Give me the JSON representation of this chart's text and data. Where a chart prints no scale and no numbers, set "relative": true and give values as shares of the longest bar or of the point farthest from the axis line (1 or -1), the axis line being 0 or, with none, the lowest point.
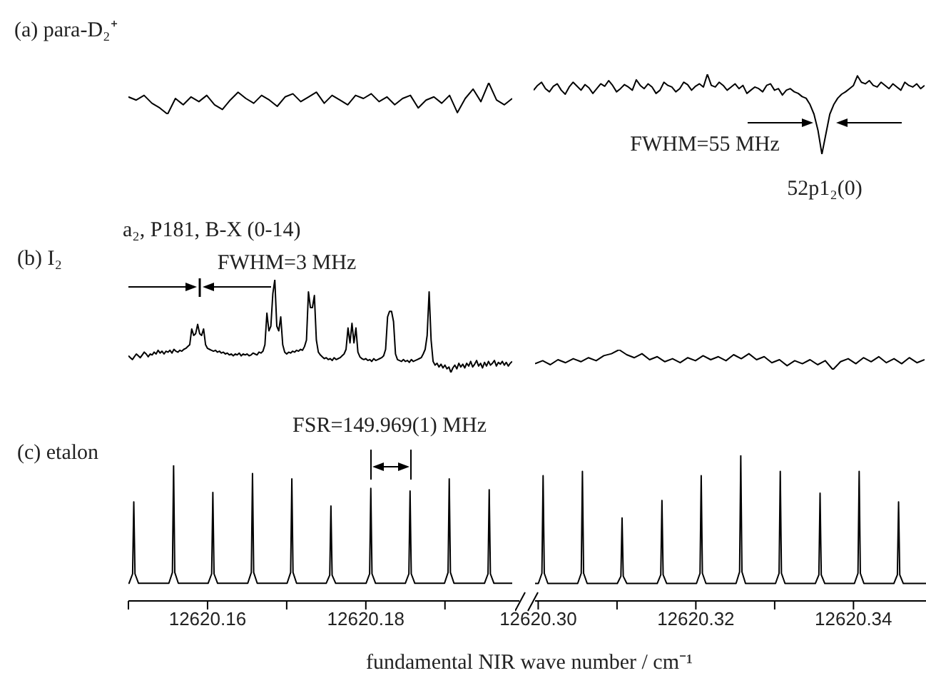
{
  "chart_data": [
    {
      "type": "line",
      "title": "(a) para-D₂⁺",
      "relative": true,
      "tick_labels": false,
      "categories": [
        null,
        null,
        null,
        null,
        null,
        null,
        null,
        null,
        null,
        null,
        null,
        null,
        null,
        null,
        null,
        null,
        null,
        null,
        null,
        null,
        null,
        null,
        null,
        null,
        null,
        null,
        null,
        null,
        null,
        null,
        null,
        null,
        null,
        null,
        null,
        null,
        null,
        null,
        null,
        null,
        null,
        null,
        null,
        null,
        null,
        null,
        null,
        null,
        null,
        null
      ],
      "series": [
        {
          "color": "#000000",
          "values": [
            0.55,
            0.45,
            0.6,
            0.35,
            0.2,
            0,
            0.5,
            0.3,
            0.55,
            0.4,
            0.6,
            0.3,
            0.15,
            0.45,
            0.7,
            0.5,
            0.35,
            0.6,
            0.45,
            0.25,
            0.55,
            0.65,
            0.4,
            0.55,
            0.7,
            0.35,
            0.6,
            0.45,
            0.3,
            0.6,
            0.5,
            0.65,
            0.4,
            0.55,
            0.3,
            0.5,
            0.6,
            0.2,
            0.45,
            0.55,
            0.35,
            0.6,
            0.05,
            0.5,
            0.8,
            0.4,
            1,
            0.45,
            0.3,
            0.5
          ]
        }
      ]
    },
    {
      "type": "line",
      "relative": true,
      "tick_labels": false,
      "annotations": [
        "FWHM=55 MHz",
        "52p1₂(0)"
      ],
      "categories": [
        null,
        null,
        null,
        null,
        null,
        null,
        null,
        null,
        null,
        null,
        null,
        null,
        null,
        null,
        null,
        null,
        null,
        null,
        null,
        null,
        null,
        null,
        null,
        null,
        null,
        null,
        null,
        null,
        null,
        null,
        null,
        null,
        null,
        null,
        null,
        null,
        null,
        null,
        null,
        null,
        null,
        null,
        null,
        null,
        null,
        null,
        null,
        null,
        null,
        null,
        null,
        null,
        null,
        null,
        null,
        null,
        null,
        null,
        null,
        null,
        null,
        null,
        null,
        null,
        null,
        null,
        null,
        null,
        null,
        null,
        null,
        null,
        null,
        null,
        null,
        null,
        null,
        null,
        null,
        null,
        null,
        null,
        null,
        null,
        null,
        null,
        null,
        null,
        null,
        null,
        null,
        null,
        null,
        null,
        null,
        null,
        null,
        null,
        null,
        null
      ],
      "series": [
        {
          "color": "#000000",
          "values": [
            0.8,
            0.86,
            0.9,
            0.82,
            0.78,
            0.85,
            0.88,
            0.8,
            0.75,
            0.84,
            0.9,
            0.85,
            0.8,
            0.87,
            0.83,
            0.76,
            0.82,
            0.88,
            0.85,
            0.92,
            0.86,
            0.78,
            0.82,
            0.87,
            0.84,
            0.8,
            0.93,
            0.86,
            0.82,
            0.88,
            0.84,
            0.76,
            0.8,
            0.9,
            0.86,
            0.84,
            0.78,
            0.82,
            0.9,
            0.87,
            0.8,
            0.85,
            0.88,
            0.84,
            1,
            0.86,
            0.84,
            0.9,
            0.86,
            0.8,
            0.84,
            0.88,
            0.82,
            0.86,
            0.76,
            0.8,
            0.84,
            0.82,
            0.78,
            0.86,
            0.88,
            0.8,
            0.82,
            0.74,
            0.8,
            0.82,
            0.78,
            0.76,
            0.72,
            0.7,
            0.62,
            0.5,
            0.3,
            0,
            0.25,
            0.5,
            0.62,
            0.7,
            0.75,
            0.78,
            0.82,
            0.86,
            0.98,
            0.9,
            0.88,
            0.92,
            0.86,
            0.84,
            0.9,
            0.86,
            0.82,
            0.88,
            0.84,
            0.8,
            0.9,
            0.86,
            0.84,
            0.88,
            0.82,
            0.86
          ]
        }
      ]
    },
    {
      "type": "line",
      "title": "(b) I₂",
      "relative": true,
      "tick_labels": false,
      "annotations": [
        "a₂, P181, B-X (0-14)",
        "FWHM=3 MHz"
      ],
      "categories": [
        null,
        null,
        null,
        null,
        null,
        null,
        null,
        null,
        null,
        null,
        null,
        null,
        null,
        null,
        null,
        null,
        null,
        null,
        null,
        null,
        null,
        null,
        null,
        null,
        null,
        null,
        null,
        null,
        null,
        null,
        null,
        null,
        null,
        null,
        null,
        null,
        null,
        null,
        null,
        null,
        null,
        null,
        null,
        null,
        null,
        null,
        null,
        null,
        null,
        null,
        null,
        null,
        null,
        null,
        null,
        null,
        null,
        null,
        null,
        null,
        null,
        null,
        null,
        null,
        null,
        null,
        null,
        null,
        null,
        null,
        null,
        null,
        null,
        null,
        null,
        null,
        null,
        null,
        null,
        null,
        null,
        null,
        null,
        null,
        null,
        null,
        null,
        null,
        null,
        null,
        null,
        null,
        null,
        null,
        null,
        null,
        null,
        null,
        null,
        null,
        null,
        null,
        null,
        null,
        null,
        null,
        null,
        null,
        null,
        null,
        null,
        null,
        null,
        null,
        null,
        null,
        null,
        null,
        null,
        null,
        null,
        null,
        null,
        null,
        null,
        null,
        null,
        null,
        null,
        null,
        null,
        null,
        null,
        null,
        null,
        null,
        null,
        null,
        null,
        null,
        null,
        null,
        null,
        null,
        null,
        null,
        null,
        null,
        null,
        null,
        null,
        null,
        null,
        null,
        null,
        null,
        null,
        null,
        null,
        null,
        null,
        null,
        null,
        null,
        null,
        null,
        null,
        null,
        null,
        null,
        null,
        null,
        null,
        null,
        null,
        null,
        null,
        null,
        null,
        null,
        null,
        null,
        null,
        null,
        null,
        null,
        null,
        null,
        null,
        null,
        null,
        null,
        null,
        null,
        null
      ],
      "series": [
        {
          "color": "#000000",
          "values": [
            0.18,
            0.16,
            0.14,
            0.17,
            0.2,
            0.18,
            0.16,
            0.19,
            0.22,
            0.2,
            0.17,
            0.2,
            0.19,
            0.22,
            0.2,
            0.24,
            0.21,
            0.23,
            0.2,
            0.23,
            0.22,
            0.24,
            0.21,
            0.25,
            0.23,
            0.22,
            0.24,
            0.23,
            0.25,
            0.26,
            0.28,
            0.3,
            0.47,
            0.4,
            0.42,
            0.52,
            0.42,
            0.4,
            0.47,
            0.3,
            0.26,
            0.25,
            0.24,
            0.23,
            0.24,
            0.22,
            0.23,
            0.21,
            0.22,
            0.2,
            0.21,
            0.19,
            0.2,
            0.18,
            0.2,
            0.19,
            0.21,
            0.18,
            0.2,
            0.19,
            0.2,
            0.18,
            0.19,
            0.21,
            0.2,
            0.19,
            0.22,
            0.21,
            0.23,
            0.3,
            0.64,
            0.45,
            0.5,
            0.85,
            1,
            0.5,
            0.45,
            0.6,
            0.3,
            0.22,
            0.2,
            0.22,
            0.21,
            0.23,
            0.22,
            0.24,
            0.23,
            0.25,
            0.24,
            0.28,
            0.35,
            0.87,
            0.7,
            0.7,
            0.83,
            0.35,
            0.22,
            0.19,
            0.17,
            0.15,
            0.16,
            0.14,
            0.15,
            0.13,
            0.16,
            0.14,
            0.15,
            0.16,
            0.18,
            0.2,
            0.25,
            0.48,
            0.32,
            0.53,
            0.32,
            0.48,
            0.22,
            0.17,
            0.15,
            0.14,
            0.15,
            0.13,
            0.14,
            0.12,
            0.15,
            0.13,
            0.14,
            0.15,
            0.16,
            0.18,
            0.25,
            0.6,
            0.66,
            0.66,
            0.55,
            0.2,
            0.14,
            0.13,
            0.12,
            0.14,
            0.12,
            0.13,
            0.11,
            0.14,
            0.12,
            0.13,
            0.14,
            0.15,
            0.16,
            0.2,
            0.25,
            0.4,
            0.87,
            0.35,
            0.12,
            0.08,
            0.1,
            0.06,
            0.09,
            0.05,
            0.08,
            0.04,
            0.06,
            0,
            0.05,
            0.08,
            0.04,
            0.1,
            0.06,
            0.09,
            0.05,
            0.1,
            0.07,
            0.12,
            0.06,
            0.09,
            0.13,
            0.07,
            0.1,
            0.05,
            0.11,
            0.07,
            0.12,
            0.08,
            0.1,
            0.13,
            0.07,
            0.11,
            0.09,
            0.12,
            0.08,
            0.11,
            0.07,
            0.1,
            0.12
          ]
        }
      ]
    },
    {
      "type": "line",
      "relative": true,
      "tick_labels": false,
      "categories": [
        null,
        null,
        null,
        null,
        null,
        null,
        null,
        null,
        null,
        null,
        null,
        null,
        null,
        null,
        null,
        null,
        null,
        null,
        null,
        null,
        null,
        null,
        null,
        null,
        null,
        null,
        null,
        null,
        null,
        null,
        null,
        null,
        null,
        null,
        null,
        null,
        null,
        null,
        null,
        null,
        null,
        null,
        null,
        null,
        null,
        null,
        null,
        null,
        null,
        null,
        null,
        null
      ],
      "series": [
        {
          "color": "#000000",
          "values": [
            0.3,
            0.45,
            0.25,
            0.5,
            0.35,
            0.55,
            0.4,
            0.6,
            0.45,
            0.7,
            0.8,
            1,
            0.75,
            0.6,
            0.8,
            0.5,
            0.65,
            0.4,
            0.55,
            0.35,
            0.6,
            0.45,
            0.7,
            0.5,
            0.65,
            0.45,
            0.75,
            0.55,
            0.8,
            0.5,
            0.65,
            0.35,
            0.5,
            0.2,
            0.45,
            0.3,
            0.5,
            0.25,
            0.45,
            0,
            0.4,
            0.55,
            0.3,
            0.6,
            0.4,
            0.65,
            0.35,
            0.55,
            0.3,
            0.6,
            0.35,
            0.5
          ]
        }
      ]
    },
    {
      "type": "line",
      "title": "(c) etalon",
      "xlabel": "fundamental NIR wave number / cm⁻¹",
      "relative": true,
      "tick_labels": "x",
      "xlim": [
        12620.15,
        12620.1994
      ],
      "xticks": [
        {
          "value": 12620.15,
          "label": null
        },
        12620.16,
        {
          "value": 12620.17,
          "label": null
        },
        12620.18,
        {
          "value": 12620.19,
          "label": null
        }
      ],
      "annotations": [
        "FSR=149.969(1) MHz"
      ],
      "x": [
        12620.15,
        12620.15008,
        12620.15053,
        12620.15068,
        12620.15083,
        12620.15128,
        12620.15511,
        12620.15556,
        12620.15571,
        12620.15586,
        12620.15631,
        12620.16007,
        12620.16052,
        12620.16067,
        12620.16082,
        12620.16127,
        12620.16508,
        12620.16553,
        12620.16568,
        12620.16583,
        12620.16628,
        12620.17005,
        12620.1705,
        12620.17065,
        12620.1708,
        12620.17125,
        12620.17499,
        12620.17544,
        12620.17559,
        12620.17574,
        12620.17619,
        12620.18003,
        12620.18048,
        12620.18063,
        12620.18078,
        12620.18123,
        12620.18499,
        12620.18544,
        12620.18559,
        12620.18574,
        12620.18619,
        12620.18994,
        12620.19039,
        12620.19054,
        12620.19069,
        12620.19114,
        12620.19499,
        12620.19544,
        12620.19559,
        12620.19574,
        12620.19619,
        12620.1985
      ],
      "series": [
        {
          "color": "#000000",
          "values": [
            0.13,
            0.13,
            0.2,
            0.73,
            0.2,
            0.13,
            0.13,
            0.21,
            1,
            0.21,
            0.13,
            0.13,
            0.2,
            0.8,
            0.2,
            0.13,
            0.13,
            0.21,
            0.94,
            0.21,
            0.13,
            0.13,
            0.21,
            0.9,
            0.21,
            0.13,
            0.13,
            0.19,
            0.7,
            0.19,
            0.13,
            0.13,
            0.2,
            0.83,
            0.2,
            0.13,
            0.13,
            0.2,
            0.81,
            0.2,
            0.13,
            0.13,
            0.21,
            0.9,
            0.21,
            0.13,
            0.13,
            0.2,
            0.82,
            0.2,
            0.13,
            0.13
          ]
        }
      ]
    },
    {
      "type": "line",
      "relative": true,
      "tick_labels": "x",
      "xlim": [
        12620.2996,
        12620.3492
      ],
      "xticks": [
        {
          "value": 12620.3,
          "label": "12620.30"
        },
        {
          "value": 12620.31,
          "label": null
        },
        12620.32,
        {
          "value": 12620.33,
          "label": null
        },
        12620.34
      ],
      "x": [
        12620.2996,
        12620.30002,
        12620.30047,
        12620.30062,
        12620.30077,
        12620.30122,
        12620.30501,
        12620.30546,
        12620.30561,
        12620.30576,
        12620.30621,
        12620.31004,
        12620.31049,
        12620.31064,
        12620.31079,
        12620.31124,
        12620.3151,
        12620.31555,
        12620.3157,
        12620.31585,
        12620.3163,
        12620.32008,
        12620.32053,
        12620.32068,
        12620.32083,
        12620.32128,
        12620.3251,
        12620.32555,
        12620.3257,
        12620.32585,
        12620.3263,
        12620.33011,
        12620.33056,
        12620.33071,
        12620.33086,
        12620.33131,
        12620.33516,
        12620.33561,
        12620.33576,
        12620.33591,
        12620.33636,
        12620.34012,
        12620.34057,
        12620.34072,
        12620.34087,
        12620.34132,
        12620.34512,
        12620.34557,
        12620.34572,
        12620.34587,
        12620.34632,
        12620.3492
      ],
      "series": [
        {
          "color": "#000000",
          "values": [
            0.12,
            0.12,
            0.19,
            0.86,
            0.19,
            0.12,
            0.12,
            0.19,
            0.89,
            0.19,
            0.12,
            0.12,
            0.17,
            0.57,
            0.17,
            0.12,
            0.12,
            0.18,
            0.69,
            0.18,
            0.12,
            0.12,
            0.19,
            0.86,
            0.19,
            0.12,
            0.12,
            0.2,
            1,
            0.2,
            0.12,
            0.12,
            0.19,
            0.89,
            0.19,
            0.12,
            0.12,
            0.18,
            0.74,
            0.18,
            0.12,
            0.12,
            0.19,
            0.89,
            0.19,
            0.12,
            0.12,
            0.18,
            0.68,
            0.18,
            0.12,
            0.12
          ]
        }
      ]
    }
  ]
}
